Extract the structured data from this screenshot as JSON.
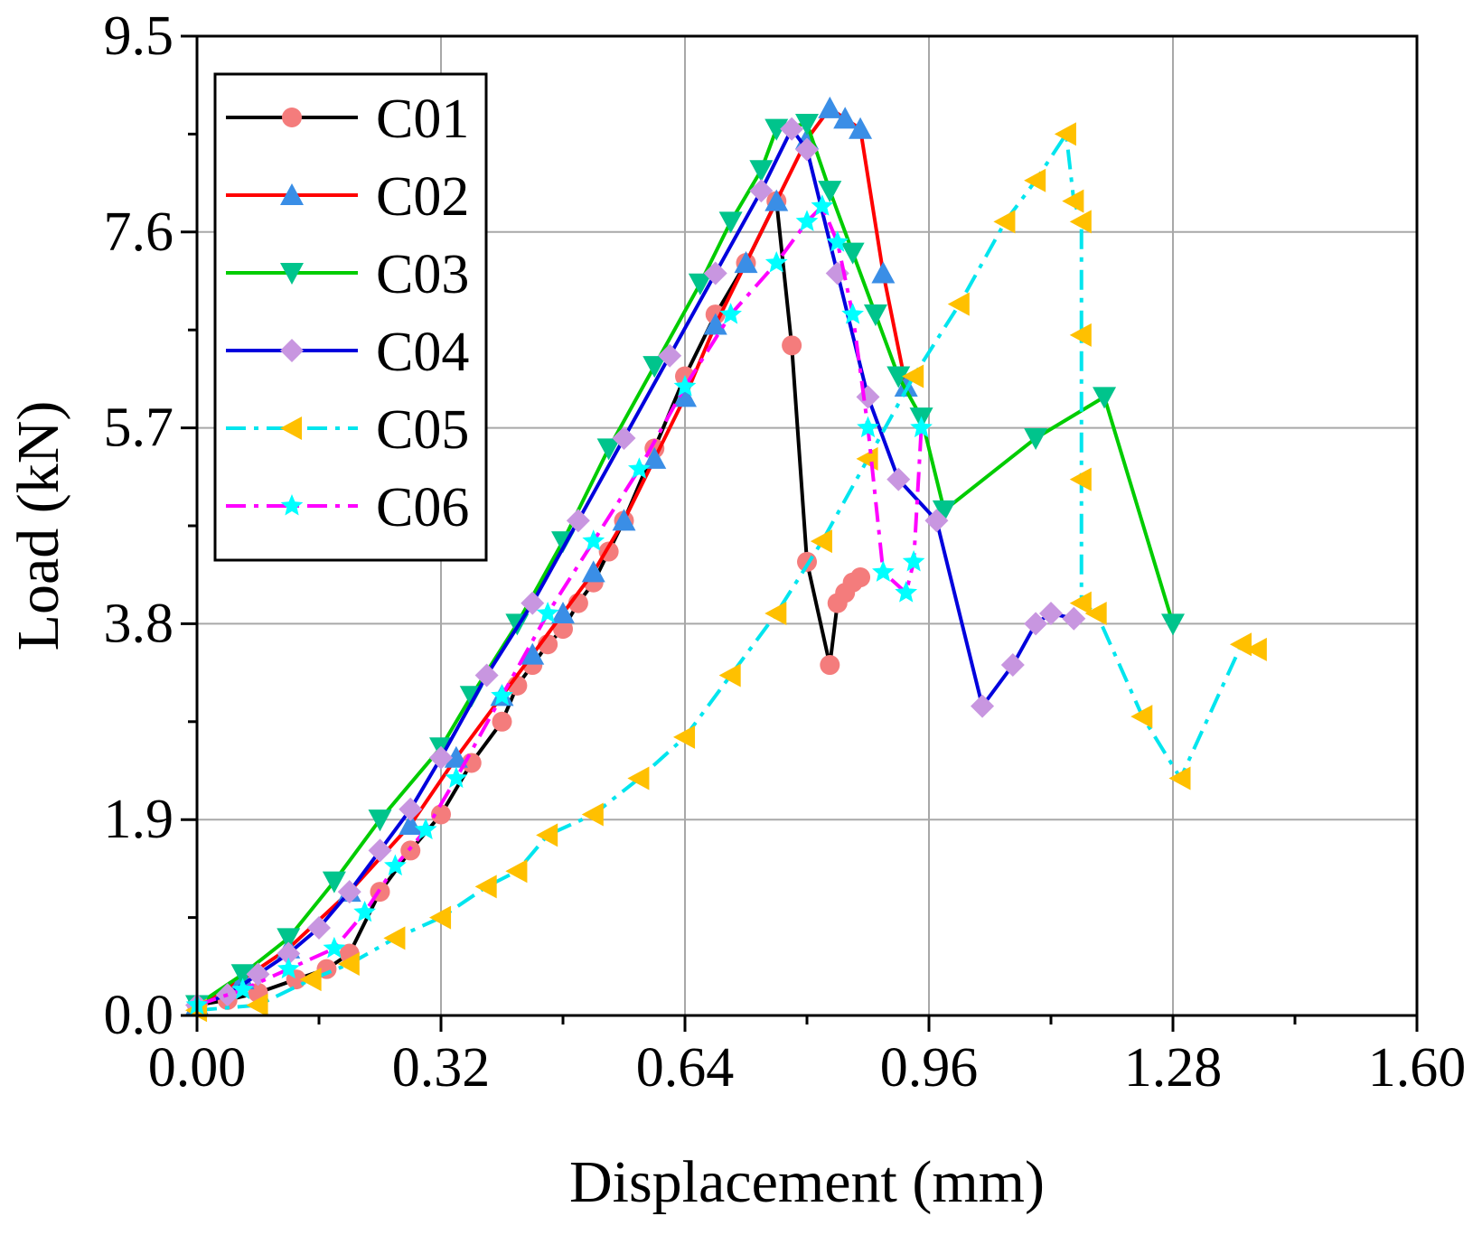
{
  "chart_data": {
    "type": "line",
    "title": "",
    "xlabel": "Displacement (mm)",
    "ylabel": "Load (kN)",
    "xlim": [
      0,
      1.6
    ],
    "ylim": [
      0,
      9.5
    ],
    "xticks": [
      "0.00",
      "0.32",
      "0.64",
      "0.96",
      "1.28",
      "1.60"
    ],
    "yticks": [
      "0.0",
      "1.9",
      "3.8",
      "5.7",
      "7.6",
      "9.5"
    ],
    "xtick_values": [
      0,
      0.32,
      0.64,
      0.96,
      1.28,
      1.6
    ],
    "ytick_values": [
      0,
      1.9,
      3.8,
      5.7,
      7.6,
      9.5
    ],
    "grid": true,
    "legend_position": "top-left",
    "series": [
      {
        "name": "C01",
        "line_color": "#000000",
        "marker": "circle",
        "marker_color": "#f47c7c",
        "dash": "solid",
        "x": [
          0.0,
          0.04,
          0.08,
          0.13,
          0.17,
          0.2,
          0.24,
          0.28,
          0.32,
          0.36,
          0.4,
          0.42,
          0.44,
          0.46,
          0.48,
          0.5,
          0.52,
          0.54,
          0.56,
          0.6,
          0.64,
          0.68,
          0.72,
          0.76,
          0.78,
          0.8,
          0.83,
          0.84,
          0.85,
          0.86,
          0.87
        ],
        "y": [
          0.1,
          0.15,
          0.22,
          0.35,
          0.45,
          0.6,
          1.2,
          1.6,
          1.95,
          2.45,
          2.85,
          3.2,
          3.4,
          3.6,
          3.75,
          4.0,
          4.2,
          4.5,
          4.8,
          5.5,
          6.2,
          6.8,
          7.3,
          7.9,
          6.5,
          4.4,
          3.4,
          4.0,
          4.1,
          4.2,
          4.25
        ]
      },
      {
        "name": "C02",
        "line_color": "#ff0000",
        "marker": "triangle-up",
        "marker_color": "#3a8ee6",
        "dash": "solid",
        "x": [
          0.0,
          0.06,
          0.12,
          0.2,
          0.28,
          0.34,
          0.4,
          0.44,
          0.48,
          0.52,
          0.56,
          0.6,
          0.64,
          0.68,
          0.72,
          0.76,
          0.8,
          0.83,
          0.85,
          0.87,
          0.9,
          0.93
        ],
        "y": [
          0.1,
          0.35,
          0.65,
          1.2,
          1.85,
          2.5,
          3.1,
          3.5,
          3.9,
          4.3,
          4.8,
          5.4,
          6.0,
          6.7,
          7.3,
          7.9,
          8.5,
          8.8,
          8.7,
          8.6,
          7.2,
          6.1
        ]
      },
      {
        "name": "C03",
        "line_color": "#00cc00",
        "marker": "triangle-down",
        "marker_color": "#00c48c",
        "dash": "solid",
        "x": [
          0.0,
          0.06,
          0.12,
          0.18,
          0.24,
          0.32,
          0.36,
          0.42,
          0.48,
          0.54,
          0.6,
          0.66,
          0.7,
          0.74,
          0.76,
          0.8,
          0.83,
          0.86,
          0.89,
          0.92,
          0.95,
          0.98,
          1.1,
          1.19,
          1.28
        ],
        "y": [
          0.1,
          0.4,
          0.75,
          1.3,
          1.9,
          2.6,
          3.1,
          3.8,
          4.6,
          5.5,
          6.3,
          7.1,
          7.7,
          8.2,
          8.6,
          8.65,
          8.0,
          7.4,
          6.8,
          6.2,
          5.8,
          4.9,
          5.6,
          6.0,
          3.8
        ]
      },
      {
        "name": "C04",
        "line_color": "#0000dd",
        "marker": "diamond",
        "marker_color": "#c896e0",
        "dash": "solid",
        "x": [
          0.0,
          0.04,
          0.08,
          0.12,
          0.16,
          0.2,
          0.24,
          0.28,
          0.32,
          0.38,
          0.44,
          0.5,
          0.56,
          0.62,
          0.68,
          0.74,
          0.78,
          0.8,
          0.84,
          0.88,
          0.92,
          0.97,
          1.03,
          1.07,
          1.1,
          1.12,
          1.15
        ],
        "y": [
          0.1,
          0.2,
          0.4,
          0.6,
          0.85,
          1.2,
          1.6,
          2.0,
          2.5,
          3.3,
          4.0,
          4.8,
          5.6,
          6.4,
          7.2,
          8.0,
          8.6,
          8.4,
          7.2,
          6.0,
          5.2,
          4.8,
          3.0,
          3.4,
          3.8,
          3.9,
          3.85
        ]
      },
      {
        "name": "C05",
        "line_color": "#00e5ee",
        "marker": "triangle-left",
        "marker_color": "#ffc000",
        "dash": "dashdot",
        "x": [
          0.0,
          0.08,
          0.15,
          0.2,
          0.26,
          0.32,
          0.38,
          0.42,
          0.46,
          0.52,
          0.58,
          0.64,
          0.7,
          0.76,
          0.82,
          0.88,
          0.94,
          1.0,
          1.06,
          1.1,
          1.14,
          1.15,
          1.16,
          1.16,
          1.16,
          1.16,
          1.18,
          1.24,
          1.29,
          1.37,
          1.39
        ],
        "y": [
          0.05,
          0.1,
          0.35,
          0.5,
          0.75,
          0.95,
          1.25,
          1.4,
          1.75,
          1.95,
          2.3,
          2.7,
          3.3,
          3.9,
          4.6,
          5.4,
          6.2,
          6.9,
          7.7,
          8.1,
          8.55,
          7.9,
          7.7,
          6.6,
          5.2,
          4.0,
          3.9,
          2.9,
          2.3,
          3.6,
          3.55
        ]
      },
      {
        "name": "C06",
        "line_color": "#ff00ff",
        "marker": "star",
        "marker_color": "#00ffff",
        "dash": "dashdot",
        "x": [
          0.0,
          0.06,
          0.12,
          0.18,
          0.22,
          0.26,
          0.3,
          0.34,
          0.4,
          0.46,
          0.52,
          0.58,
          0.64,
          0.7,
          0.76,
          0.8,
          0.82,
          0.84,
          0.86,
          0.88,
          0.9,
          0.93,
          0.94,
          0.95
        ],
        "y": [
          0.1,
          0.25,
          0.45,
          0.65,
          1.0,
          1.45,
          1.8,
          2.3,
          3.1,
          3.9,
          4.6,
          5.3,
          6.1,
          6.8,
          7.3,
          7.7,
          7.85,
          7.5,
          6.8,
          5.7,
          4.3,
          4.1,
          4.4,
          5.7
        ]
      }
    ]
  }
}
